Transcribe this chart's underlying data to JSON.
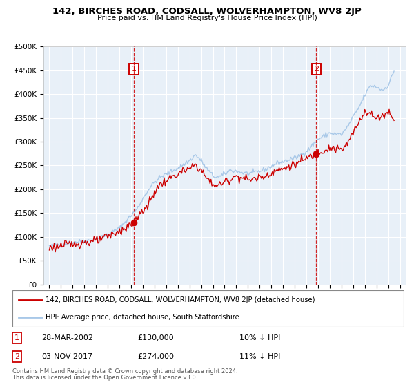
{
  "title": "142, BIRCHES ROAD, CODSALL, WOLVERHAMPTON, WV8 2JP",
  "subtitle": "Price paid vs. HM Land Registry's House Price Index (HPI)",
  "legend_line1": "142, BIRCHES ROAD, CODSALL, WOLVERHAMPTON, WV8 2JP (detached house)",
  "legend_line2": "HPI: Average price, detached house, South Staffordshire",
  "footnote1": "Contains HM Land Registry data © Crown copyright and database right 2024.",
  "footnote2": "This data is licensed under the Open Government Licence v3.0.",
  "sale1_date": "28-MAR-2002",
  "sale1_price": "£130,000",
  "sale1_hpi": "10% ↓ HPI",
  "sale2_date": "03-NOV-2017",
  "sale2_price": "£274,000",
  "sale2_hpi": "11% ↓ HPI",
  "sale1_year": 2002.23,
  "sale1_value": 130000,
  "sale2_year": 2017.84,
  "sale2_value": 274000,
  "vline1_year": 2002.23,
  "vline2_year": 2017.84,
  "ylim_min": 0,
  "ylim_max": 500000,
  "yticks": [
    0,
    50000,
    100000,
    150000,
    200000,
    250000,
    300000,
    350000,
    400000,
    450000,
    500000
  ],
  "ytick_labels": [
    "£0",
    "£50K",
    "£100K",
    "£150K",
    "£200K",
    "£250K",
    "£300K",
    "£350K",
    "£400K",
    "£450K",
    "£500K"
  ],
  "xlim_min": 1994.5,
  "xlim_max": 2025.5,
  "xticks": [
    1995,
    1996,
    1997,
    1998,
    1999,
    2000,
    2001,
    2002,
    2003,
    2004,
    2005,
    2006,
    2007,
    2008,
    2009,
    2010,
    2011,
    2012,
    2013,
    2014,
    2015,
    2016,
    2017,
    2018,
    2019,
    2020,
    2021,
    2022,
    2023,
    2024,
    2025
  ],
  "hpi_color": "#a8c8e8",
  "price_color": "#cc0000",
  "bg_color": "#e8f0f8",
  "grid_color": "#ffffff",
  "sale_dot_color": "#cc0000",
  "vline_color": "#cc0000",
  "hpi_anchors": [
    [
      1995.0,
      80000
    ],
    [
      1996.0,
      84000
    ],
    [
      1997.0,
      88000
    ],
    [
      1998.0,
      91000
    ],
    [
      1999.0,
      95000
    ],
    [
      2000.0,
      105000
    ],
    [
      2001.0,
      118000
    ],
    [
      2002.0,
      145000
    ],
    [
      2002.5,
      158000
    ],
    [
      2003.0,
      180000
    ],
    [
      2003.5,
      200000
    ],
    [
      2004.0,
      215000
    ],
    [
      2004.5,
      225000
    ],
    [
      2005.0,
      232000
    ],
    [
      2005.5,
      238000
    ],
    [
      2006.0,
      245000
    ],
    [
      2006.5,
      252000
    ],
    [
      2007.0,
      260000
    ],
    [
      2007.5,
      272000
    ],
    [
      2008.0,
      260000
    ],
    [
      2008.5,
      242000
    ],
    [
      2009.0,
      228000
    ],
    [
      2009.5,
      225000
    ],
    [
      2010.0,
      232000
    ],
    [
      2010.5,
      240000
    ],
    [
      2011.0,
      238000
    ],
    [
      2011.5,
      235000
    ],
    [
      2012.0,
      233000
    ],
    [
      2012.5,
      235000
    ],
    [
      2013.0,
      238000
    ],
    [
      2013.5,
      242000
    ],
    [
      2014.0,
      248000
    ],
    [
      2014.5,
      255000
    ],
    [
      2015.0,
      258000
    ],
    [
      2015.5,
      262000
    ],
    [
      2016.0,
      265000
    ],
    [
      2016.5,
      272000
    ],
    [
      2017.0,
      280000
    ],
    [
      2017.5,
      292000
    ],
    [
      2018.0,
      305000
    ],
    [
      2018.5,
      312000
    ],
    [
      2019.0,
      318000
    ],
    [
      2019.5,
      316000
    ],
    [
      2020.0,
      315000
    ],
    [
      2020.5,
      330000
    ],
    [
      2021.0,
      352000
    ],
    [
      2021.5,
      372000
    ],
    [
      2022.0,
      398000
    ],
    [
      2022.5,
      418000
    ],
    [
      2023.0,
      415000
    ],
    [
      2023.5,
      408000
    ],
    [
      2024.0,
      418000
    ],
    [
      2024.5,
      448000
    ]
  ],
  "price_anchors": [
    [
      1995.0,
      77000
    ],
    [
      1996.0,
      81000
    ],
    [
      1997.0,
      85000
    ],
    [
      1998.0,
      88000
    ],
    [
      1999.0,
      91000
    ],
    [
      2000.0,
      100000
    ],
    [
      2001.0,
      112000
    ],
    [
      2002.0,
      125000
    ],
    [
      2002.23,
      130000
    ],
    [
      2003.0,
      155000
    ],
    [
      2003.5,
      168000
    ],
    [
      2004.0,
      195000
    ],
    [
      2004.5,
      210000
    ],
    [
      2005.0,
      218000
    ],
    [
      2005.5,
      225000
    ],
    [
      2006.0,
      232000
    ],
    [
      2006.5,
      238000
    ],
    [
      2007.0,
      242000
    ],
    [
      2007.5,
      252000
    ],
    [
      2008.0,
      240000
    ],
    [
      2008.5,
      222000
    ],
    [
      2009.0,
      210000
    ],
    [
      2009.5,
      208000
    ],
    [
      2010.0,
      215000
    ],
    [
      2010.5,
      222000
    ],
    [
      2011.0,
      228000
    ],
    [
      2011.5,
      225000
    ],
    [
      2012.0,
      220000
    ],
    [
      2012.5,
      222000
    ],
    [
      2013.0,
      225000
    ],
    [
      2013.5,
      228000
    ],
    [
      2014.0,
      235000
    ],
    [
      2014.5,
      240000
    ],
    [
      2015.0,
      242000
    ],
    [
      2015.5,
      248000
    ],
    [
      2016.0,
      252000
    ],
    [
      2016.5,
      258000
    ],
    [
      2017.0,
      265000
    ],
    [
      2017.84,
      274000
    ],
    [
      2018.0,
      278000
    ],
    [
      2018.5,
      282000
    ],
    [
      2019.0,
      288000
    ],
    [
      2019.5,
      285000
    ],
    [
      2020.0,
      282000
    ],
    [
      2020.5,
      295000
    ],
    [
      2021.0,
      318000
    ],
    [
      2021.5,
      342000
    ],
    [
      2022.0,
      365000
    ],
    [
      2022.5,
      358000
    ],
    [
      2023.0,
      348000
    ],
    [
      2023.5,
      355000
    ],
    [
      2024.0,
      362000
    ],
    [
      2024.5,
      350000
    ]
  ]
}
